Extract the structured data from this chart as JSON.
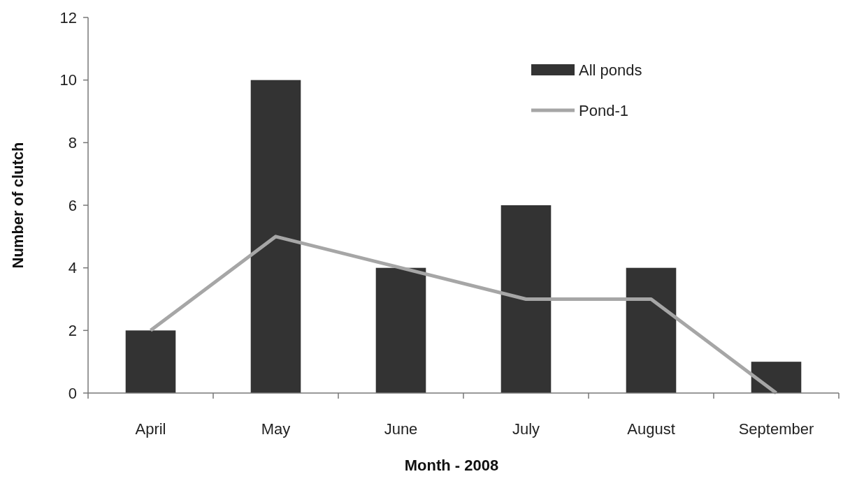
{
  "chart_data": {
    "type": "bar",
    "xlabel": "Month - 2008",
    "ylabel": "Number of clutch",
    "categories": [
      "April",
      "May",
      "June",
      "July",
      "August",
      "September"
    ],
    "series": [
      {
        "name": "All ponds",
        "color": "#333333",
        "values": [
          2,
          10,
          4,
          6,
          4,
          1
        ]
      },
      {
        "name": "Pond-1",
        "type": "line",
        "color": "#a6a6a6",
        "values": [
          2,
          5,
          4,
          3,
          3,
          0
        ]
      }
    ],
    "ylim": [
      0,
      12
    ],
    "yticks": [
      0,
      2,
      4,
      6,
      8,
      10,
      12
    ],
    "grid": false,
    "legend": "top right",
    "marker": "none"
  }
}
